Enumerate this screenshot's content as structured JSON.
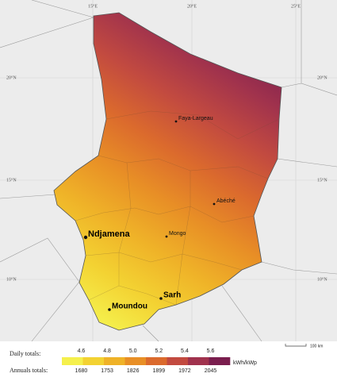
{
  "graticule": {
    "top": [
      "15°E",
      "20°E",
      "25°E"
    ],
    "left": [
      "20°N",
      "15°N",
      "10°N"
    ],
    "right": [
      "20°N",
      "15°N",
      "10°N"
    ]
  },
  "cities": [
    {
      "name": "Faya-Largeau",
      "size": "small"
    },
    {
      "name": "Abéché",
      "size": "small"
    },
    {
      "name": "Ndjamena",
      "size": "large"
    },
    {
      "name": "Mongo",
      "size": "small"
    },
    {
      "name": "Sarh",
      "size": "medium"
    },
    {
      "name": "Moundou",
      "size": "medium"
    }
  ],
  "legend": {
    "daily_label": "Daily totals:",
    "annual_label": "Annuals totals:",
    "unit": "kWh/kWp",
    "daily_ticks": [
      4.6,
      4.8,
      {
        "value": 5,
        "label": "5.0"
      },
      5.2,
      5.4,
      5.6
    ],
    "annual_ticks": [
      1680,
      1753,
      1826,
      1899,
      1972,
      2045
    ],
    "colors": [
      "#f5f04c",
      "#f3d232",
      "#efb228",
      "#e88f26",
      "#db6a2d",
      "#c24a40",
      "#a0324d",
      "#7a1e4e"
    ]
  },
  "scale_bar": {
    "label": "100 km"
  }
}
